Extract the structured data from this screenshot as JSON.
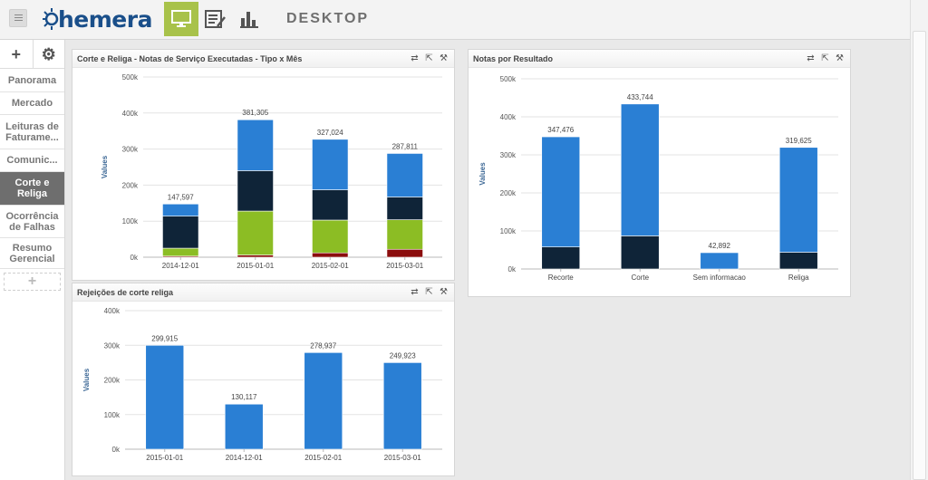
{
  "app": {
    "logo_text": "hemera",
    "page_title": "DESKTOP"
  },
  "topnav": [
    {
      "name": "desktop-icon",
      "active": true
    },
    {
      "name": "report-list-icon",
      "active": false
    },
    {
      "name": "bar-chart-icon",
      "active": false
    }
  ],
  "sidebar": {
    "tools": {
      "add": "+",
      "settings": "⚙"
    },
    "items": [
      {
        "label": "Panorama",
        "active": false
      },
      {
        "label": "Mercado",
        "active": false
      },
      {
        "label": "Leituras de Faturame...",
        "active": false
      },
      {
        "label": "Comunic...",
        "active": false
      },
      {
        "label": "Corte e Religa",
        "active": true
      },
      {
        "label": "Ocorrência de Falhas",
        "active": false
      },
      {
        "label": "Resumo Gerencial",
        "active": false
      }
    ],
    "add_tab": "+"
  },
  "panels": {
    "p1": {
      "title": "Corte e Religa - Notas de Serviço Executadas - Tipo x Mês"
    },
    "p2": {
      "title": "Notas por Resultado"
    },
    "p3": {
      "title": "Rejeições de corte religa"
    }
  },
  "tool_icons": [
    "swap-icon",
    "export-icon",
    "wrench-icon"
  ],
  "colors": {
    "blue": "#2a7fd4",
    "navy": "#0f2438",
    "green": "#8cbd24",
    "red": "#8b0d0d",
    "accent": "#a8c24a",
    "brand": "#1a4f8a"
  },
  "chart_data": [
    {
      "type": "bar",
      "stacked": true,
      "ylabel": "Values",
      "ylim": [
        0,
        500000
      ],
      "yticks": [
        "0k",
        "100k",
        "200k",
        "300k",
        "400k",
        "500k"
      ],
      "categories": [
        "2014-12-01",
        "2015-01-01",
        "2015-02-01",
        "2015-03-01"
      ],
      "totals": [
        "147,597",
        "381,305",
        "327,024",
        "287,811"
      ],
      "series": [
        {
          "color": "#8b0d0d",
          "values": [
            3000,
            6000,
            12000,
            22000
          ]
        },
        {
          "color": "#8cbd24",
          "values": [
            22000,
            122000,
            91000,
            82000
          ]
        },
        {
          "color": "#0f2438",
          "values": [
            89000,
            112000,
            84000,
            63000
          ]
        },
        {
          "color": "#2a7fd4",
          "values": [
            33597,
            141305,
            140024,
            120811
          ]
        }
      ]
    },
    {
      "type": "bar",
      "stacked": true,
      "ylabel": "Values",
      "ylim": [
        0,
        500000
      ],
      "yticks": [
        "0k",
        "100k",
        "200k",
        "300k",
        "400k",
        "500k"
      ],
      "categories": [
        "Recorte",
        "Corte",
        "Sem informacao",
        "Religa"
      ],
      "totals": [
        "347,476",
        "433,744",
        "42,892",
        "319,625"
      ],
      "series": [
        {
          "color": "#0f2438",
          "values": [
            58000,
            87000,
            0,
            44000
          ]
        },
        {
          "color": "#2a7fd4",
          "values": [
            289476,
            346744,
            42892,
            275625
          ]
        }
      ]
    },
    {
      "type": "bar",
      "stacked": false,
      "ylabel": "Values",
      "ylim": [
        0,
        400000
      ],
      "yticks": [
        "0k",
        "100k",
        "200k",
        "300k",
        "400k"
      ],
      "categories": [
        "2015-01-01",
        "2014-12-01",
        "2015-02-01",
        "2015-03-01"
      ],
      "totals": [
        "299,915",
        "130,117",
        "278,937",
        "249,923"
      ],
      "series": [
        {
          "color": "#2a7fd4",
          "values": [
            299915,
            130117,
            278937,
            249923
          ]
        }
      ]
    }
  ]
}
